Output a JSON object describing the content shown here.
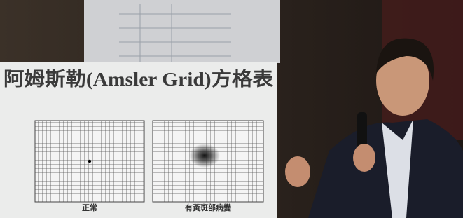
{
  "slide": {
    "title": "阿姆斯勒(Amsler Grid)方格表",
    "captions": [
      "正常",
      "有黃斑部病變"
    ]
  }
}
